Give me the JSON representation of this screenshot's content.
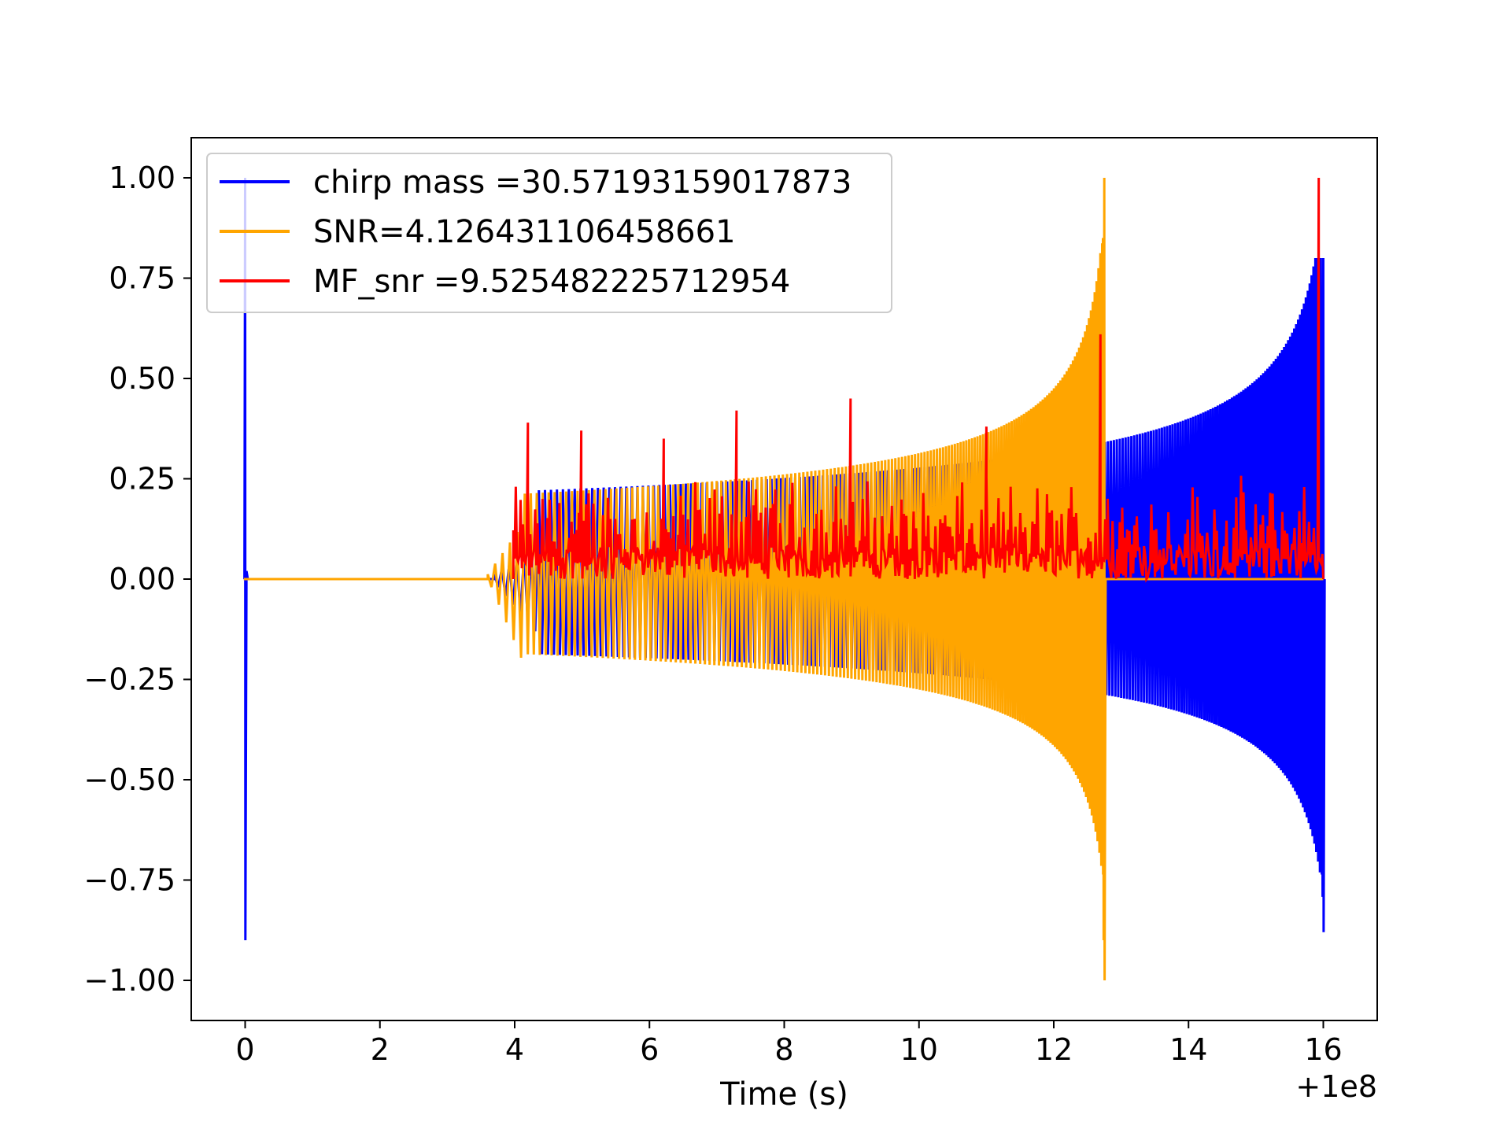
{
  "chart_data": {
    "type": "line",
    "title": "",
    "xlabel": "Time (s)",
    "ylabel": "",
    "x_offset_label": "+1e8",
    "xlim": [
      -0.8,
      16.8
    ],
    "ylim": [
      -1.1,
      1.1
    ],
    "xticks": [
      0,
      2,
      4,
      6,
      8,
      10,
      12,
      14,
      16
    ],
    "yticks": [
      1.0,
      0.75,
      0.5,
      0.25,
      0.0,
      -0.25,
      -0.5,
      -0.75,
      -1.0
    ],
    "xtick_labels": [
      "0",
      "2",
      "4",
      "6",
      "8",
      "10",
      "12",
      "14",
      "16"
    ],
    "ytick_labels": [
      "1.00",
      "0.75",
      "0.50",
      "0.25",
      "0.00",
      "−0.25",
      "−0.50",
      "−0.75",
      "−1.00"
    ],
    "grid": false,
    "legend_placement": "upper-left",
    "series": [
      {
        "name": "chirp mass =30.57193159017873",
        "color": "#0000ff",
        "style": "chirp",
        "spike_at": 0.0,
        "spike_max": 1.0,
        "spike_min": -0.9,
        "flat_until": 3.7,
        "osc_start": 3.8,
        "merger": 16.0,
        "early_amp": 0.12,
        "late_upper": 0.26,
        "late_lower": -0.22,
        "peak_max": 0.8,
        "peak_min": -0.88
      },
      {
        "name": "SNR=4.126431106458661",
        "color": "#ffa500",
        "style": "chirp",
        "flat_until": 3.6,
        "osc_start": 3.6,
        "merger": 12.75,
        "end": 16.0,
        "early_amp": 0.2,
        "late_upper": 0.25,
        "late_lower": -0.22,
        "peak_max": 1.0,
        "peak_min": -1.0
      },
      {
        "name": "MF_snr =9.525482225712954",
        "color": "#ff0000",
        "style": "noise",
        "start": 3.98,
        "end": 16.0,
        "baseline": 0.0,
        "typical_max": 0.27,
        "spike_values": [
          [
            4.2,
            0.39
          ],
          [
            5.0,
            0.37
          ],
          [
            6.2,
            0.35
          ],
          [
            7.3,
            0.42
          ],
          [
            9.0,
            0.45
          ],
          [
            11.0,
            0.38
          ],
          [
            12.7,
            0.61
          ],
          [
            15.95,
            1.0
          ]
        ]
      }
    ]
  }
}
